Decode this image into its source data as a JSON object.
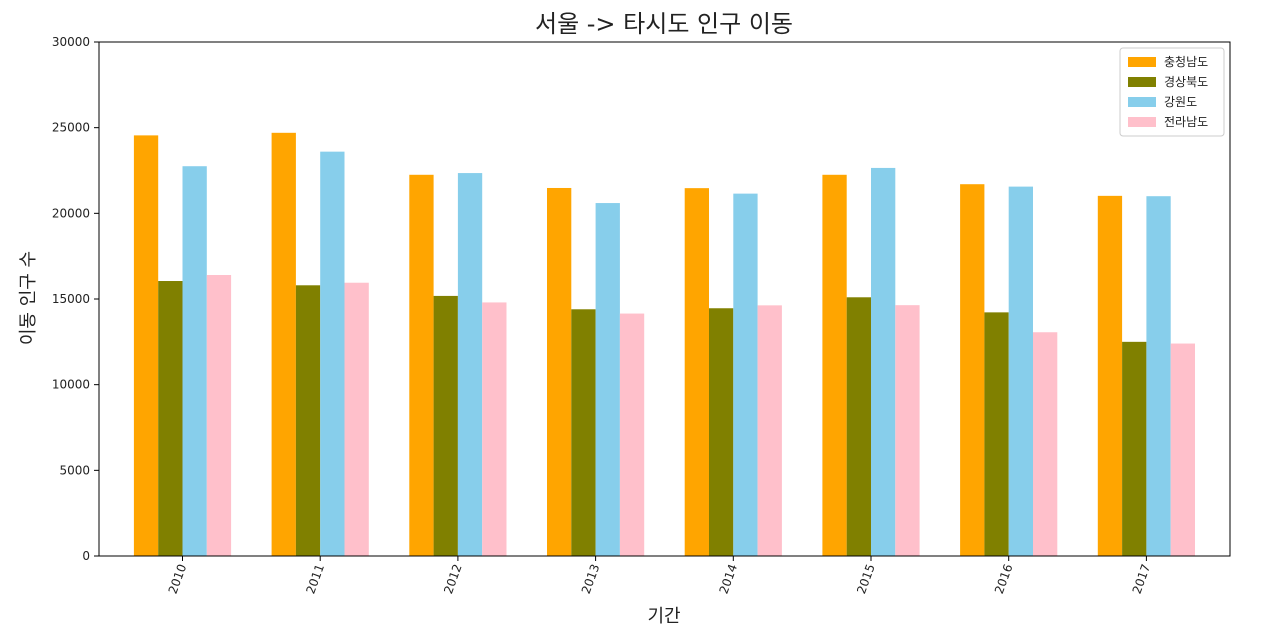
{
  "chart_data": {
    "type": "bar",
    "title": "서울 -> 타시도 인구 이동",
    "xlabel": "기간",
    "ylabel": "이동 인구 수",
    "categories": [
      "2010",
      "2011",
      "2012",
      "2013",
      "2014",
      "2015",
      "2016",
      "2017"
    ],
    "yticks": [
      "0",
      "5000",
      "10000",
      "15000",
      "20000",
      "25000",
      "30000"
    ],
    "ylim": [
      0,
      30000
    ],
    "grid": false,
    "legend_position": "top-right",
    "series": [
      {
        "name": "충청남도",
        "color": "#FFA500",
        "values": [
          24550,
          24700,
          22250,
          21480,
          21470,
          22250,
          21700,
          21020
        ]
      },
      {
        "name": "경상북도",
        "color": "#808000",
        "values": [
          16050,
          15800,
          15180,
          14400,
          14460,
          15100,
          14220,
          12500
        ]
      },
      {
        "name": "강원도",
        "color": "#87CEEB",
        "values": [
          22750,
          23600,
          22350,
          20600,
          21150,
          22650,
          21560,
          21000
        ]
      },
      {
        "name": "전라남도",
        "color": "#FFC0CB",
        "values": [
          16400,
          15950,
          14800,
          14150,
          14630,
          14640,
          13060,
          12400
        ]
      }
    ]
  }
}
